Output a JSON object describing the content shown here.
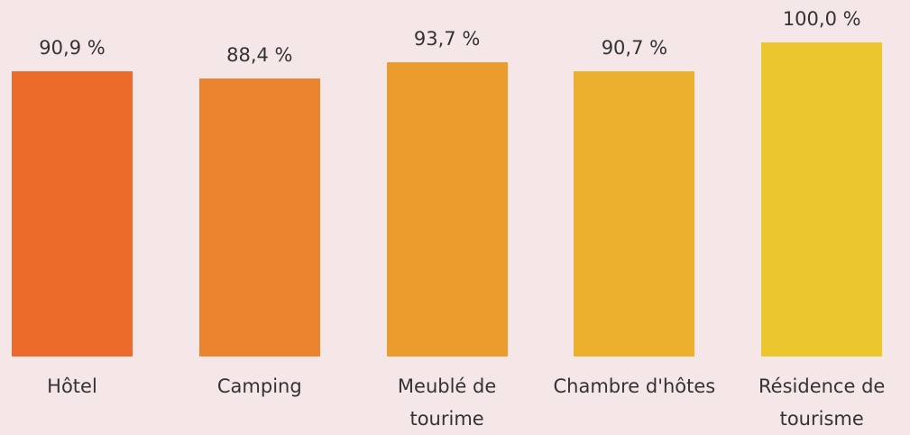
{
  "chart_data": {
    "type": "bar",
    "categories": [
      "Hôtel",
      "Camping",
      "Meublé de tourime",
      "Chambre d'hôtes",
      "Résidence de tourisme"
    ],
    "values": [
      90.9,
      88.4,
      93.7,
      90.7,
      100.0
    ],
    "value_labels": [
      "90,9 %",
      "88,4 %",
      "93,7 %",
      "90,7 %",
      "100,0 %"
    ],
    "colors": [
      "#ec6a2a",
      "#ec832e",
      "#ec9b2d",
      "#ecb02e",
      "#ebc62c"
    ]
  }
}
